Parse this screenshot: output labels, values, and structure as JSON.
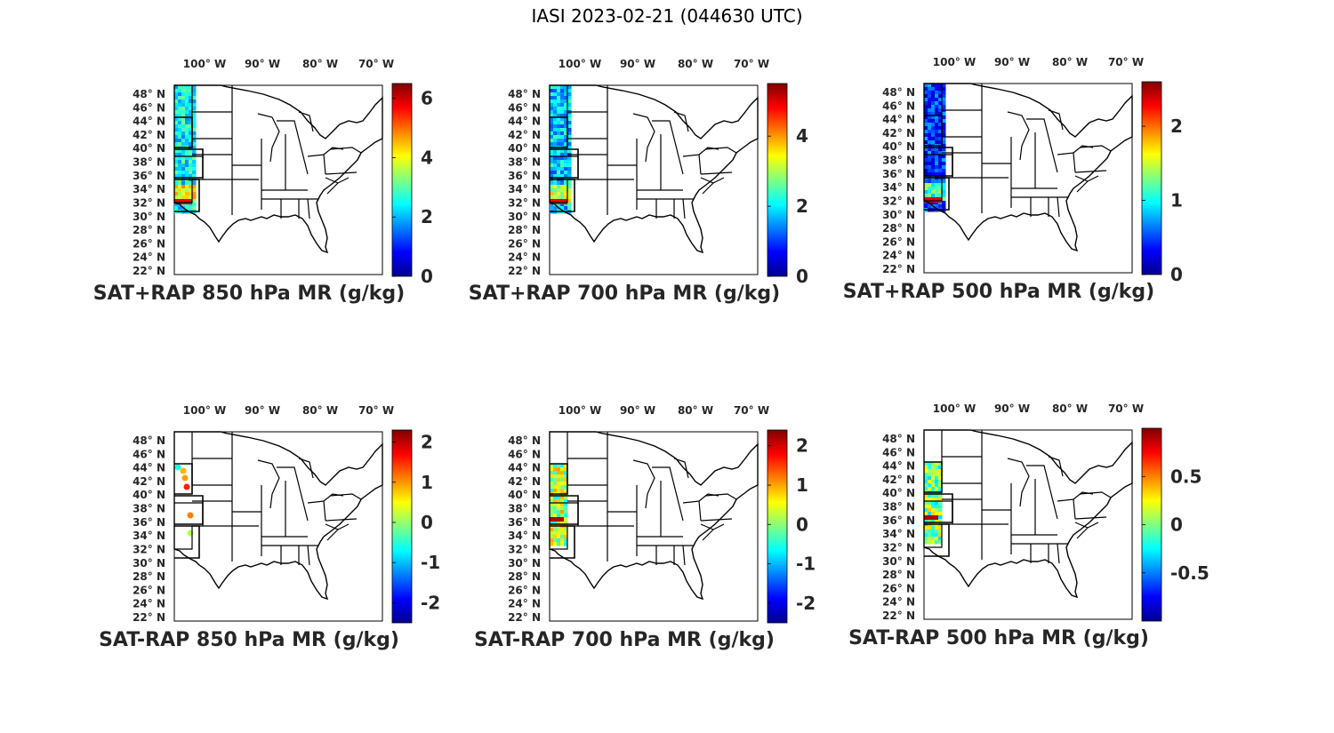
{
  "figure": {
    "title": "IASI 2023-02-21 (044630 UTC)",
    "colormap": [
      "#00008f",
      "#0000ff",
      "#0080ff",
      "#00ffff",
      "#80ff80",
      "#ffff00",
      "#ff8000",
      "#ff0000",
      "#800000"
    ]
  },
  "map_axes": {
    "lon_ticks": [
      "100° W",
      "90° W",
      "80° W",
      "70° W"
    ],
    "lat_ticks": [
      "48° N",
      "46° N",
      "44° N",
      "42° N",
      "40° N",
      "38° N",
      "36° N",
      "34° N",
      "32° N",
      "30° N",
      "28° N",
      "26° N",
      "24° N",
      "22° N"
    ],
    "region": "Eastern United States"
  },
  "panels": [
    {
      "title": "SAT+RAP 850 hPa MR (g/kg)",
      "cmin": 0,
      "cmax": 6.5,
      "ticks": [
        "0",
        "2",
        "4",
        "6"
      ],
      "tick_values": [
        0,
        2,
        4,
        6
      ],
      "pattern": "fill",
      "level": 0.38
    },
    {
      "title": "SAT+RAP 700 hPa MR (g/kg)",
      "cmin": 0,
      "cmax": 5.5,
      "ticks": [
        "0",
        "2",
        "4"
      ],
      "tick_values": [
        0,
        2,
        4
      ],
      "pattern": "fill",
      "level": 0.32
    },
    {
      "title": "SAT+RAP 500 hPa MR (g/kg)",
      "cmin": 0,
      "cmax": 2.6,
      "ticks": [
        "0",
        "1",
        "2"
      ],
      "tick_values": [
        0,
        1,
        2
      ],
      "pattern": "fill",
      "level": 0.18
    },
    {
      "title": "SAT-RAP 850 hPa MR (g/kg)",
      "cmin": -2.5,
      "cmax": 2.3,
      "ticks": [
        "-2",
        "-1",
        "0",
        "1",
        "2"
      ],
      "tick_values": [
        -2,
        -1,
        0,
        1,
        2
      ],
      "pattern": "sparse",
      "level": 0.6
    },
    {
      "title": "SAT-RAP 700 hPa MR (g/kg)",
      "cmin": -2.5,
      "cmax": 2.4,
      "ticks": [
        "-2",
        "-1",
        "0",
        "1",
        "2"
      ],
      "tick_values": [
        -2,
        -1,
        0,
        1,
        2
      ],
      "pattern": "strip",
      "level": 0.55
    },
    {
      "title": "SAT-RAP 500 hPa MR (g/kg)",
      "cmin": -1.0,
      "cmax": 1.0,
      "ticks": [
        "-0.5",
        "0",
        "0.5"
      ],
      "tick_values": [
        -0.5,
        0,
        0.5
      ],
      "pattern": "strip",
      "level": 0.5
    }
  ]
}
